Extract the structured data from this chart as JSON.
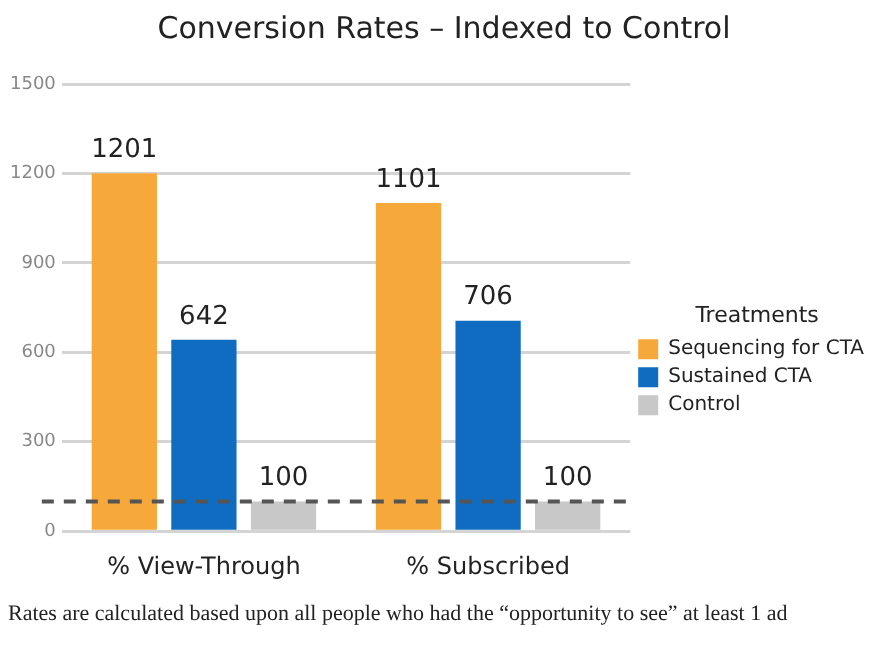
{
  "chart_data": {
    "type": "bar",
    "title": "Conversion Rates – Indexed to Control",
    "categories": [
      "% View-Through",
      "% Subscribed"
    ],
    "series": [
      {
        "name": "Sequencing for CTA",
        "color": "#f7a83a",
        "values": [
          1201,
          1101
        ]
      },
      {
        "name": "Sustained CTA",
        "color": "#0f6cc0",
        "values": [
          642,
          706
        ]
      },
      {
        "name": "Control",
        "color": "#c8c8c8",
        "values": [
          100,
          100
        ]
      }
    ],
    "ylim": [
      0,
      1500
    ],
    "yticks": [
      0,
      300,
      600,
      900,
      1200,
      1500
    ],
    "grid": "y",
    "data_labels": true,
    "legend": "right",
    "legend_title": "Treatments",
    "ref_lines": [
      {
        "axis": "y",
        "value": 100,
        "color": "#555555",
        "line_style": "dashed"
      }
    ],
    "annotations": [
      "Rates are calculated based upon all people who had the “opportunity to see” at least 1 ad"
    ]
  }
}
